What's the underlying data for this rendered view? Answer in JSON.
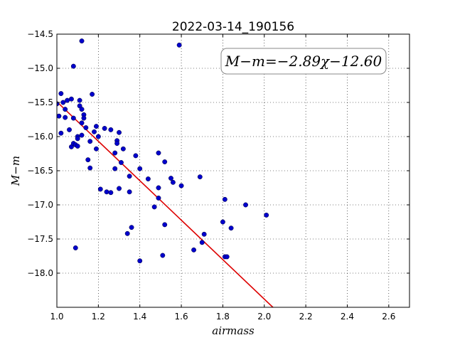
{
  "chart_data": {
    "type": "scatter",
    "title": "2022-03-14_190156",
    "xlabel": "airmass",
    "ylabel": "M−m",
    "xlim": [
      1.0,
      2.7
    ],
    "ylim": [
      -18.5,
      -14.5
    ],
    "y_inverted": true,
    "grid": true,
    "x_ticks": [
      "1.0",
      "1.2",
      "1.4",
      "1.6",
      "1.8",
      "2.0",
      "2.2",
      "2.4",
      "2.6"
    ],
    "x_tick_values": [
      1.0,
      1.2,
      1.4,
      1.6,
      1.8,
      2.0,
      2.2,
      2.4,
      2.6
    ],
    "y_ticks": [
      "−14.5",
      "−15.0",
      "−15.5",
      "−16.0",
      "−16.5",
      "−17.0",
      "−17.5",
      "−18.0"
    ],
    "y_tick_values": [
      -14.5,
      -15.0,
      -15.5,
      -16.0,
      -16.5,
      -17.0,
      -17.5,
      -18.0
    ],
    "annotation": "M−m=−2.89χ−12.60",
    "fit": {
      "slope": -2.89,
      "intercept": -12.6,
      "x_range": [
        1.0,
        2.05
      ],
      "color": "#dd0000"
    },
    "point_color": "#0000cc",
    "points": [
      [
        1.0,
        -15.52
      ],
      [
        1.01,
        -15.7
      ],
      [
        1.02,
        -15.37
      ],
      [
        1.02,
        -15.95
      ],
      [
        1.03,
        -15.5
      ],
      [
        1.04,
        -15.6
      ],
      [
        1.04,
        -15.72
      ],
      [
        1.05,
        -15.47
      ],
      [
        1.06,
        -15.9
      ],
      [
        1.07,
        -15.45
      ],
      [
        1.07,
        -16.15
      ],
      [
        1.08,
        -15.73
      ],
      [
        1.08,
        -16.1
      ],
      [
        1.08,
        -14.97
      ],
      [
        1.09,
        -16.12
      ],
      [
        1.09,
        -17.63
      ],
      [
        1.1,
        -16.0
      ],
      [
        1.1,
        -16.03
      ],
      [
        1.1,
        -16.14
      ],
      [
        1.11,
        -15.47
      ],
      [
        1.11,
        -15.55
      ],
      [
        1.12,
        -15.6
      ],
      [
        1.12,
        -15.8
      ],
      [
        1.12,
        -15.98
      ],
      [
        1.12,
        -14.6
      ],
      [
        1.13,
        -15.68
      ],
      [
        1.13,
        -15.73
      ],
      [
        1.14,
        -15.87
      ],
      [
        1.15,
        -16.34
      ],
      [
        1.16,
        -16.46
      ],
      [
        1.16,
        -16.07
      ],
      [
        1.17,
        -15.38
      ],
      [
        1.18,
        -15.93
      ],
      [
        1.19,
        -15.85
      ],
      [
        1.19,
        -16.18
      ],
      [
        1.2,
        -16.0
      ],
      [
        1.21,
        -16.77
      ],
      [
        1.23,
        -15.88
      ],
      [
        1.24,
        -16.81
      ],
      [
        1.26,
        -15.9
      ],
      [
        1.26,
        -16.82
      ],
      [
        1.28,
        -16.47
      ],
      [
        1.28,
        -16.24
      ],
      [
        1.29,
        -16.06
      ],
      [
        1.29,
        -16.1
      ],
      [
        1.3,
        -16.76
      ],
      [
        1.3,
        -15.94
      ],
      [
        1.31,
        -16.38
      ],
      [
        1.32,
        -16.18
      ],
      [
        1.34,
        -17.42
      ],
      [
        1.35,
        -16.58
      ],
      [
        1.35,
        -16.81
      ],
      [
        1.36,
        -17.33
      ],
      [
        1.38,
        -16.28
      ],
      [
        1.4,
        -17.82
      ],
      [
        1.4,
        -16.47
      ],
      [
        1.44,
        -16.62
      ],
      [
        1.47,
        -17.03
      ],
      [
        1.49,
        -16.24
      ],
      [
        1.49,
        -16.75
      ],
      [
        1.49,
        -16.9
      ],
      [
        1.51,
        -17.74
      ],
      [
        1.52,
        -16.37
      ],
      [
        1.52,
        -17.29
      ],
      [
        1.55,
        -16.61
      ],
      [
        1.56,
        -16.67
      ],
      [
        1.59,
        -14.66
      ],
      [
        1.6,
        -16.72
      ],
      [
        1.66,
        -17.66
      ],
      [
        1.69,
        -16.59
      ],
      [
        1.7,
        -17.55
      ],
      [
        1.71,
        -17.43
      ],
      [
        1.8,
        -17.25
      ],
      [
        1.81,
        -17.76
      ],
      [
        1.81,
        -16.92
      ],
      [
        1.82,
        -17.76
      ],
      [
        1.84,
        -17.34
      ],
      [
        1.91,
        -17.0
      ],
      [
        2.01,
        -17.15
      ]
    ]
  }
}
